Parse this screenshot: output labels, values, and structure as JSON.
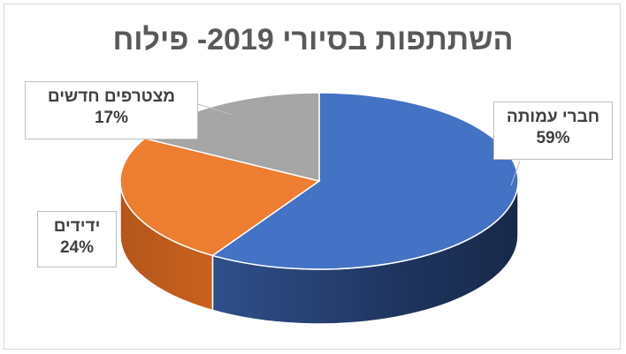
{
  "chart_data": {
    "type": "pie",
    "style": "3d",
    "title": "השתתפות בסיורי 2019- פילוח",
    "slices": [
      {
        "label": "חברי עמותה",
        "value": 59,
        "value_label": "59%",
        "color": "#4472c4"
      },
      {
        "label": "ידידים",
        "value": 24,
        "value_label": "24%",
        "color": "#ed7d31"
      },
      {
        "label": "מצטרפים חדשים",
        "value": 17,
        "value_label": "17%",
        "color": "#a5a5a5"
      }
    ],
    "legend": "none"
  }
}
